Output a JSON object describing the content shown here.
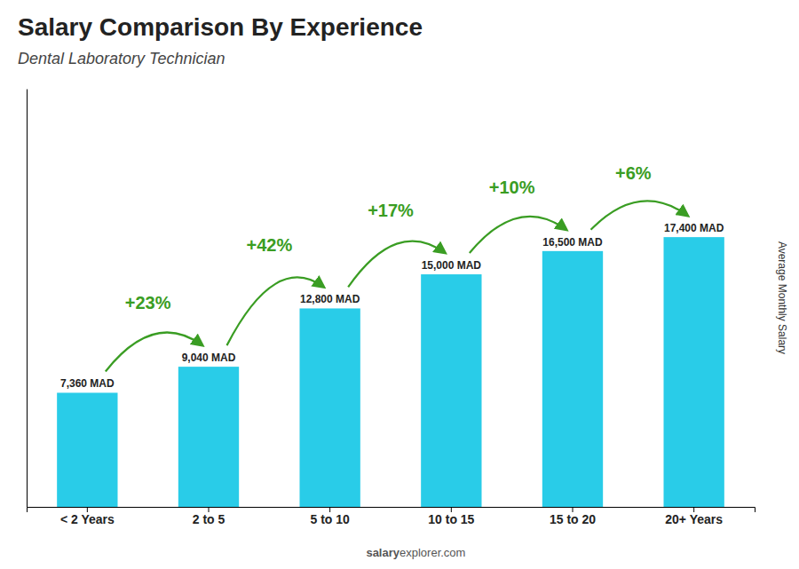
{
  "chart_data": {
    "type": "bar",
    "title": "Salary Comparison By Experience",
    "subtitle": "Dental Laboratory Technician",
    "y_label": "Average Monthly Salary",
    "categories": [
      "< 2 Years",
      "2 to 5",
      "5 to 10",
      "10 to 15",
      "15 to 20",
      "20+ Years"
    ],
    "values": [
      7360,
      9040,
      12800,
      15000,
      16500,
      17400
    ],
    "value_labels": [
      "7,360 MAD",
      "9,040 MAD",
      "12,800 MAD",
      "15,000 MAD",
      "16,500 MAD",
      "17,400 MAD"
    ],
    "data_labels": true,
    "annotations": [
      "+23%",
      "+42%",
      "+17%",
      "+10%",
      "+6%"
    ],
    "footer": [
      "salary",
      "explorer.com"
    ],
    "color": "#29cce8",
    "ylim": [
      0,
      26970
    ],
    "grid": false,
    "tick_labels": "x"
  }
}
